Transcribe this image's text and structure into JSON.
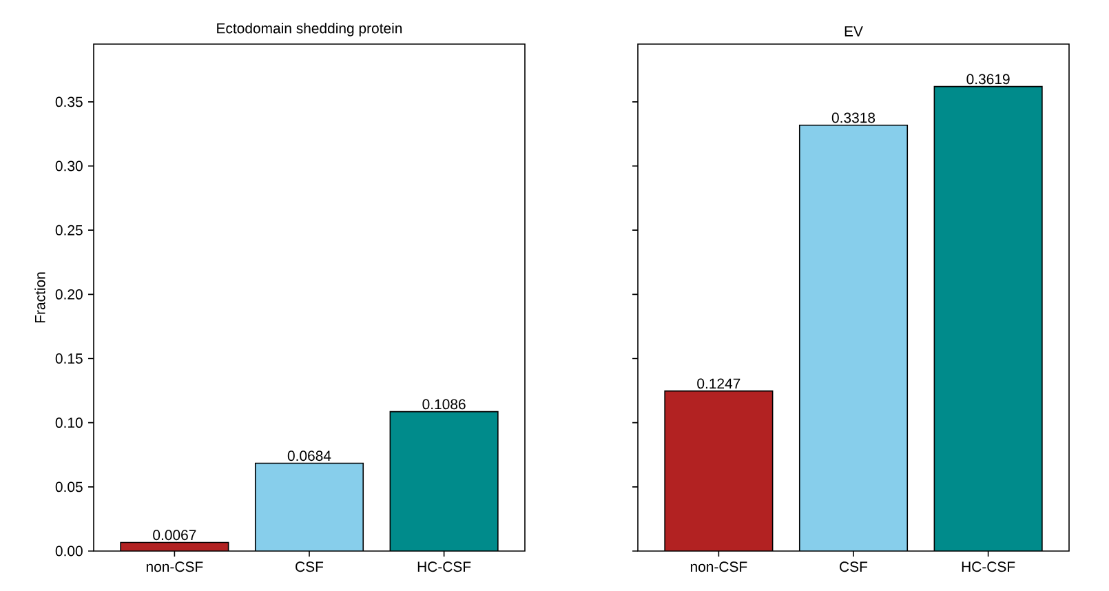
{
  "chart_data": [
    {
      "type": "bar",
      "title": "Ectodomain shedding protein",
      "ylabel": "Fraction",
      "categories": [
        "non-CSF",
        "CSF",
        "HC-CSF"
      ],
      "values": [
        0.0067,
        0.0684,
        0.1086
      ],
      "colors": [
        "#b22222",
        "#87ceeb",
        "#008b8b"
      ],
      "data_labels": true,
      "ylim": [
        0,
        0.395
      ],
      "yticks": [
        {
          "value": 0,
          "label": "0.00"
        },
        {
          "value": 0.05,
          "label": "0.05"
        },
        {
          "value": 0.1,
          "label": "0.10"
        },
        {
          "value": 0.15,
          "label": "0.15"
        },
        {
          "value": 0.2,
          "label": "0.20"
        },
        {
          "value": 0.25,
          "label": "0.25"
        },
        {
          "value": 0.3,
          "label": "0.30"
        },
        {
          "value": 0.35,
          "label": "0.35"
        }
      ],
      "grid": false
    },
    {
      "type": "bar",
      "title": "EV",
      "categories": [
        "non-CSF",
        "CSF",
        "HC-CSF"
      ],
      "values": [
        0.1247,
        0.3318,
        0.3619
      ],
      "colors": [
        "#b22222",
        "#87ceeb",
        "#008b8b"
      ],
      "data_labels": true,
      "ylim": [
        0,
        0.395
      ],
      "yticks": [
        0,
        0.05,
        0.1,
        0.15,
        0.2,
        0.25,
        0.3,
        0.35
      ],
      "tick_labels": "x",
      "grid": false
    }
  ]
}
